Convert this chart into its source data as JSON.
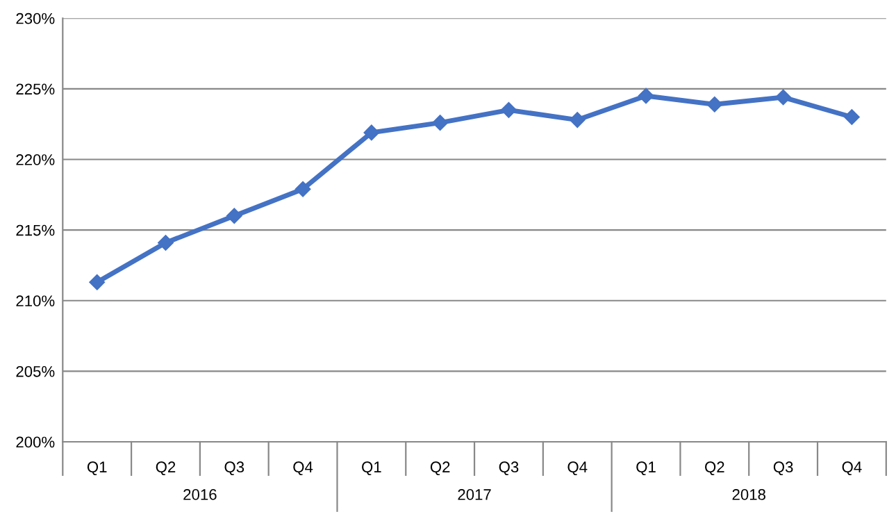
{
  "chart_data": {
    "type": "line",
    "categories": [
      "Q1",
      "Q2",
      "Q3",
      "Q4",
      "Q1",
      "Q2",
      "Q3",
      "Q4",
      "Q1",
      "Q2",
      "Q3",
      "Q4"
    ],
    "series": [
      {
        "color": "#4472c4",
        "values": [
          211.3,
          214.1,
          216.0,
          217.9,
          221.9,
          222.6,
          223.5,
          222.8,
          224.5,
          223.9,
          224.4,
          223.0
        ]
      }
    ],
    "annotations": [
      "2016",
      "2017",
      "2018"
    ],
    "ylim": [
      200,
      230
    ],
    "yticks": [
      {
        "value": 200,
        "label": "200%"
      },
      {
        "value": 205,
        "label": "205%"
      },
      {
        "value": 210,
        "label": "210%"
      },
      {
        "value": 215,
        "label": "215%"
      },
      {
        "value": 220,
        "label": "220%"
      },
      {
        "value": 225,
        "label": "225%"
      },
      {
        "value": 230,
        "label": "230%"
      }
    ],
    "grid": "y",
    "marker": "diamond",
    "line_style": "solid",
    "legend": false
  }
}
